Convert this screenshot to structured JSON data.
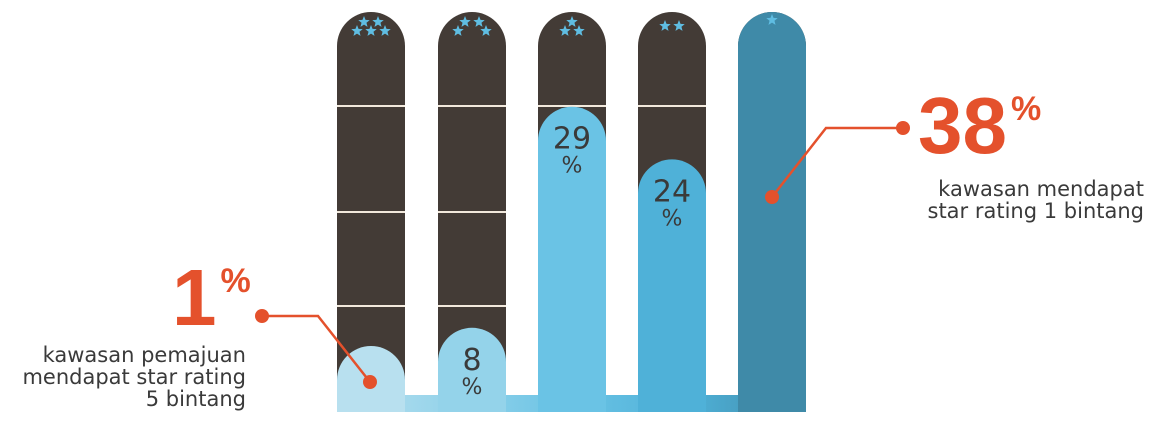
{
  "chart_data": {
    "type": "bar",
    "categories": [
      "5 bintang",
      "4 bintang",
      "3 bintang",
      "2 bintang",
      "1 bintang"
    ],
    "stars": [
      5,
      4,
      3,
      2,
      1
    ],
    "values": [
      1,
      8,
      29,
      24,
      38
    ],
    "value_labels": [
      "",
      "8\n%",
      "29\n%",
      "24\n%",
      ""
    ],
    "ylim": [
      0,
      38
    ],
    "colors": {
      "track": "#433b36",
      "divider": "#f2e9dc",
      "star": "#5fbde2",
      "callout": "#e4512c",
      "bars": [
        "#b8e0ef",
        "#94d3ea",
        "#6ac3e5",
        "#4fb1d8",
        "#3f8aa8"
      ]
    }
  },
  "callouts": {
    "left": {
      "value": "1",
      "unit": "%",
      "text": "kawasan pemajuan\nmendapat star rating\n5 bintang"
    },
    "right": {
      "value": "38",
      "unit": "%",
      "text": "kawasan mendapat\nstar rating 1 bintang"
    }
  }
}
